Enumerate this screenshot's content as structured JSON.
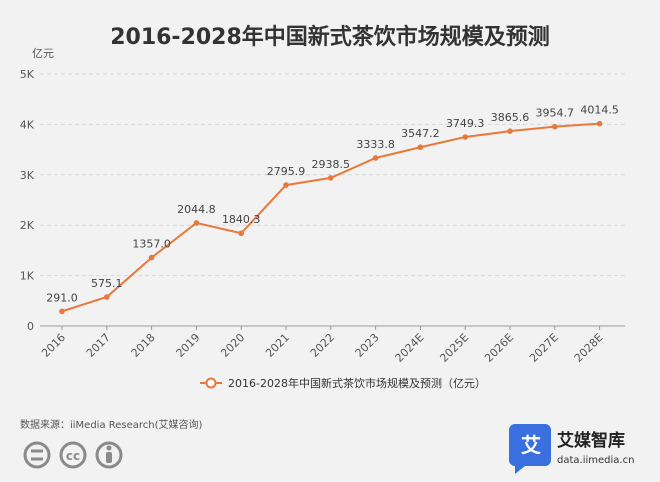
{
  "chart_data": {
    "type": "line",
    "title": "2016-2028年中国新式茶饮市场规模及预测",
    "yunit": "亿元",
    "yticks": [
      "0",
      "1K",
      "2K",
      "3K",
      "4K",
      "5K"
    ],
    "ylim": [
      0,
      5000
    ],
    "grid": true,
    "legend_position": "bottom",
    "x": [
      "2016",
      "2017",
      "2018",
      "2019",
      "2020",
      "2021",
      "2022",
      "2023",
      "2024E",
      "2025E",
      "2026E",
      "2027E",
      "2028E"
    ],
    "series": [
      {
        "name": "2016-2028年中国新式茶饮市场规模及预测（亿元）",
        "values": [
          291.0,
          575.1,
          1357.0,
          2044.8,
          1840.3,
          2795.9,
          2938.5,
          3333.8,
          3547.2,
          3749.3,
          3865.6,
          3954.7,
          4014.5
        ],
        "labels": [
          "291.0",
          "575.1",
          "1357.0",
          "2044.8",
          "1840.3",
          "2795.9",
          "2938.5",
          "3333.8",
          "3547.2",
          "3749.3",
          "3865.6",
          "3954.7",
          "4014.5"
        ],
        "color": "#e8793a"
      }
    ]
  },
  "footer": {
    "source": "数据来源：iiMedia Research(艾媒咨询)",
    "brand_name": "艾媒智库",
    "brand_url": "data.iimedia.cn",
    "brand_logo_char": "艾",
    "brand_color": "#3a6fe0"
  },
  "license_icons": [
    "equals-icon",
    "cc-icon",
    "person-icon"
  ]
}
